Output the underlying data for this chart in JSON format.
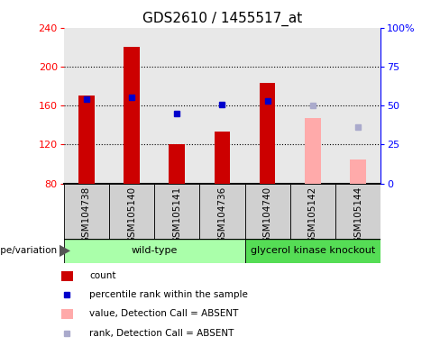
{
  "title": "GDS2610 / 1455517_at",
  "samples": [
    "GSM104738",
    "GSM105140",
    "GSM105141",
    "GSM104736",
    "GSM104740",
    "GSM105142",
    "GSM105144"
  ],
  "bar_values": [
    170,
    220,
    120,
    133,
    183,
    null,
    null
  ],
  "bar_color_present": "#cc0000",
  "bar_color_absent": "#ffaaaa",
  "absent_bar_values": [
    null,
    null,
    null,
    null,
    null,
    147,
    105
  ],
  "dot_values": [
    167,
    168,
    152,
    161,
    165,
    null,
    null
  ],
  "dot_color_present": "#0000cc",
  "absent_dot_values": [
    null,
    null,
    null,
    null,
    null,
    160,
    138
  ],
  "absent_dot_color": "#aaaacc",
  "ymin": 80,
  "ymax": 240,
  "yticks": [
    80,
    120,
    160,
    200,
    240
  ],
  "y2ticks": [
    0,
    25,
    50,
    75,
    100
  ],
  "y2ticklabels": [
    "0",
    "25",
    "50",
    "75",
    "100%"
  ],
  "bar_width": 0.35,
  "wildtype_count": 4,
  "knockout_count": 3,
  "wt_color": "#aaffaa",
  "ko_color": "#55dd55",
  "tick_bg": "#d0d0d0",
  "ax_bg": "#e8e8e8",
  "fig_bg": "#ffffff",
  "title_fontsize": 11,
  "tick_fontsize": 8,
  "sample_fontsize": 7.5,
  "legend_items": [
    {
      "label": "count",
      "color": "#cc0000",
      "type": "rect"
    },
    {
      "label": "percentile rank within the sample",
      "color": "#0000cc",
      "type": "square"
    },
    {
      "label": "value, Detection Call = ABSENT",
      "color": "#ffaaaa",
      "type": "rect"
    },
    {
      "label": "rank, Detection Call = ABSENT",
      "color": "#aaaacc",
      "type": "square"
    }
  ]
}
